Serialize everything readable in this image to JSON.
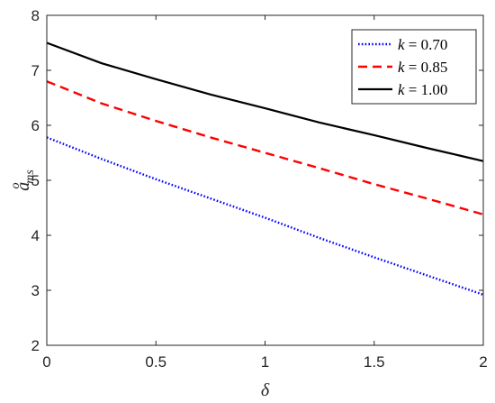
{
  "chart_data": {
    "type": "line",
    "xlabel": "δ",
    "ylabel": {
      "base": "a",
      "sup": "o",
      "sub": "ms"
    },
    "xlim": [
      0,
      2
    ],
    "ylim": [
      2,
      8
    ],
    "xticks": [
      0,
      0.5,
      1,
      1.5,
      2
    ],
    "xtick_labels": [
      "0",
      "0.5",
      "1",
      "1.5",
      "2"
    ],
    "yticks": [
      2,
      3,
      4,
      5,
      6,
      7,
      8
    ],
    "ytick_labels": [
      "2",
      "3",
      "4",
      "5",
      "6",
      "7",
      "8"
    ],
    "grid": false,
    "legend_position": "top-right",
    "series": [
      {
        "name": "k = 0.70",
        "name_var": "k",
        "name_value": "0.70",
        "color": "#0000ff",
        "style": "dotted",
        "x": [
          0,
          0.25,
          0.5,
          0.75,
          1.0,
          1.25,
          1.5,
          1.75,
          2.0
        ],
        "y": [
          5.78,
          5.39,
          5.02,
          4.67,
          4.32,
          3.95,
          3.6,
          3.26,
          2.92
        ]
      },
      {
        "name": "k = 0.85",
        "name_var": "k",
        "name_value": "0.85",
        "color": "#ff0000",
        "style": "dashed",
        "x": [
          0,
          0.25,
          0.5,
          0.75,
          1.0,
          1.25,
          1.5,
          1.75,
          2.0
        ],
        "y": [
          6.8,
          6.4,
          6.08,
          5.78,
          5.5,
          5.22,
          4.93,
          4.66,
          4.38
        ]
      },
      {
        "name": "k = 1.00",
        "name_var": "k",
        "name_value": "1.00",
        "color": "#000000",
        "style": "solid",
        "x": [
          0,
          0.25,
          0.5,
          0.75,
          1.0,
          1.25,
          1.5,
          1.75,
          2.0
        ],
        "y": [
          7.5,
          7.13,
          6.84,
          6.56,
          6.31,
          6.05,
          5.82,
          5.58,
          5.35
        ]
      }
    ]
  }
}
